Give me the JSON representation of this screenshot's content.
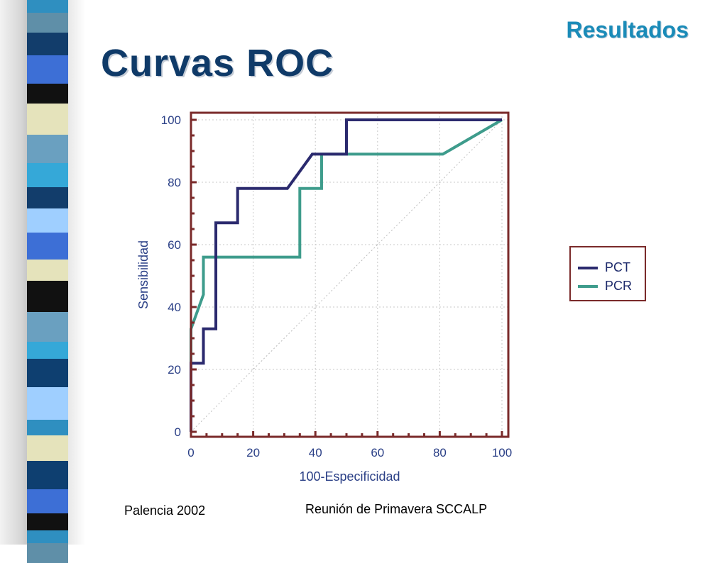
{
  "slide": {
    "section_label": "Resultados",
    "title": "Curvas ROC",
    "footer_left": "Palencia 2002",
    "footer_center": "Reunión de Primavera SCCALP"
  },
  "colors": {
    "title": "#0f3a68",
    "section_label": "#1a8bb8",
    "pct": "#2b2a6e",
    "pcr": "#3e9c8c",
    "frame": "#7a2a2a",
    "tick_text": "#2a3f86",
    "grid": "#c9c9c9",
    "stripes": [
      "#2f8fc0",
      "#5f8fa8",
      "#123d6b",
      "#3d6fd6",
      "#111111",
      "#e5e3bb",
      "#6aa0c0",
      "#35a8d8",
      "#9fcfff",
      "#0e3f70"
    ]
  },
  "legend": {
    "items": [
      {
        "label": "PCT",
        "color_key": "pct"
      },
      {
        "label": "PCR",
        "color_key": "pcr"
      }
    ]
  },
  "chart_data": {
    "type": "line",
    "xlabel": "100-Especificidad",
    "ylabel": "Sensibilidad",
    "xlim": [
      0,
      100
    ],
    "ylim": [
      0,
      100
    ],
    "xticks": [
      0,
      20,
      40,
      60,
      80,
      100
    ],
    "yticks": [
      0,
      20,
      40,
      60,
      80,
      100
    ],
    "grid": true,
    "legend_position": "right",
    "diagonal_reference": true,
    "series": [
      {
        "name": "PCT",
        "x": [
          0,
          0,
          4,
          4,
          8,
          8,
          15,
          15,
          31,
          39,
          50,
          50,
          100
        ],
        "y": [
          0,
          22,
          22,
          33,
          33,
          67,
          67,
          78,
          78,
          89,
          89,
          100,
          100
        ]
      },
      {
        "name": "PCR",
        "x": [
          0,
          0,
          4,
          4,
          35,
          35,
          42,
          42,
          81,
          100
        ],
        "y": [
          0,
          33,
          44,
          56,
          56,
          78,
          78,
          89,
          89,
          100
        ]
      }
    ]
  }
}
